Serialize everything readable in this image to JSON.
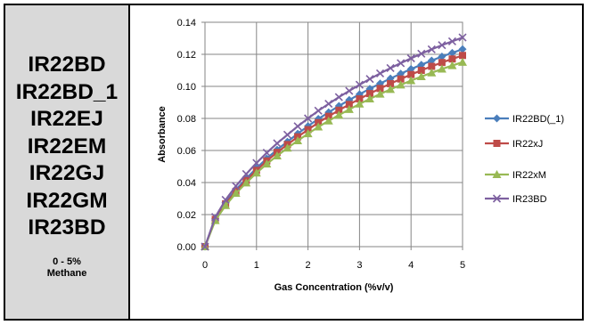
{
  "panel": {
    "models": [
      "IR22BD",
      "IR22BD_1",
      "IR22EJ",
      "IR22EM",
      "IR22GJ",
      "IR22GM",
      "IR23BD"
    ],
    "range_line1": "0 - 5%",
    "range_line2": "Methane"
  },
  "chart_data": {
    "type": "line",
    "title": "",
    "xlabel": "Gas Concentration (%v/v)",
    "ylabel": "Absorbance",
    "xlim": [
      0,
      5
    ],
    "ylim": [
      0,
      0.14
    ],
    "x_ticks": [
      0,
      1,
      2,
      3,
      4,
      5
    ],
    "y_ticks": [
      "0.00",
      "0.02",
      "0.04",
      "0.06",
      "0.08",
      "0.10",
      "0.12",
      "0.14"
    ],
    "grid": true,
    "legend_position": "right",
    "x": [
      0,
      0.2,
      0.4,
      0.6,
      0.8,
      1.0,
      1.2,
      1.4,
      1.6,
      1.8,
      2.0,
      2.2,
      2.4,
      2.6,
      2.8,
      3.0,
      3.2,
      3.4,
      3.6,
      3.8,
      4.0,
      4.2,
      4.4,
      4.6,
      4.8,
      5.0
    ],
    "series": [
      {
        "name": "IR22BD(_1)",
        "color": "#4a7ebb",
        "marker": "diamond",
        "values": [
          0,
          0.0175,
          0.0275,
          0.0355,
          0.0425,
          0.049,
          0.055,
          0.0605,
          0.0655,
          0.0705,
          0.0752,
          0.0797,
          0.0838,
          0.0878,
          0.0915,
          0.0951,
          0.0985,
          0.1018,
          0.1049,
          0.1079,
          0.1108,
          0.1135,
          0.1161,
          0.1186,
          0.1209,
          0.1232
        ]
      },
      {
        "name": "IR22xJ",
        "color": "#be4b48",
        "marker": "square",
        "values": [
          0,
          0.017,
          0.0267,
          0.0345,
          0.0413,
          0.0476,
          0.0535,
          0.0588,
          0.0637,
          0.0685,
          0.073,
          0.0774,
          0.0813,
          0.0851,
          0.0887,
          0.0922,
          0.0955,
          0.0987,
          0.1017,
          0.1046,
          0.1074,
          0.11,
          0.1125,
          0.1149,
          0.1171,
          0.1193
        ]
      },
      {
        "name": "IR22xM",
        "color": "#98b954",
        "marker": "triangle",
        "values": [
          0,
          0.0163,
          0.0257,
          0.0333,
          0.0398,
          0.046,
          0.0516,
          0.0567,
          0.0615,
          0.0661,
          0.0705,
          0.0747,
          0.0785,
          0.0821,
          0.0856,
          0.089,
          0.0922,
          0.0952,
          0.0981,
          0.1009,
          0.1036,
          0.1061,
          0.1085,
          0.1108,
          0.113,
          0.1151
        ]
      },
      {
        "name": "IR23BD",
        "color": "#7d60a0",
        "marker": "x",
        "values": [
          0,
          0.0185,
          0.0292,
          0.0378,
          0.0453,
          0.0522,
          0.0586,
          0.0645,
          0.0698,
          0.0751,
          0.08,
          0.0848,
          0.0891,
          0.0933,
          0.0972,
          0.101,
          0.1046,
          0.1081,
          0.1114,
          0.1145,
          0.1175,
          0.1204,
          0.1231,
          0.1257,
          0.1281,
          0.1305
        ]
      }
    ]
  }
}
